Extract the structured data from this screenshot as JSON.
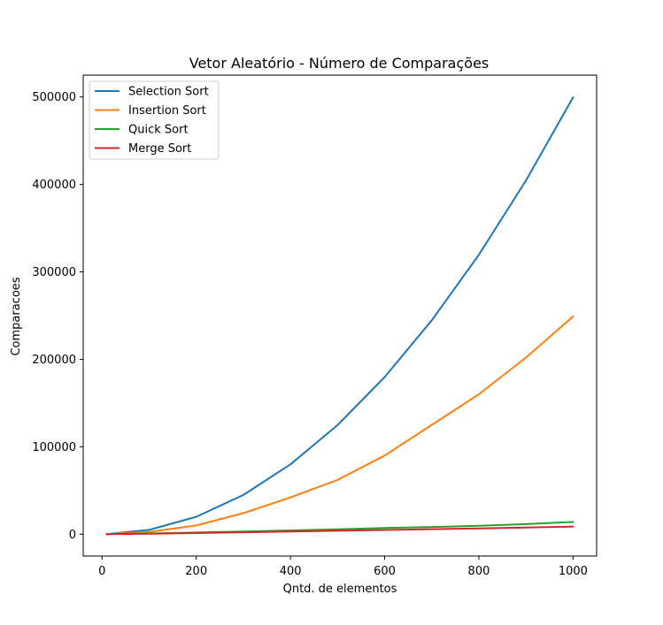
{
  "chart_data": {
    "type": "line",
    "title": "Vetor Aleatório - Número de Comparações",
    "xlabel": "Qntd. de elementos",
    "ylabel": "Comparacoes",
    "xlim": [
      -40,
      1050
    ],
    "ylim": [
      -25000,
      525000
    ],
    "xticks": [
      0,
      200,
      400,
      600,
      800,
      1000
    ],
    "xtick_labels": [
      "0",
      "200",
      "400",
      "600",
      "800",
      "1000"
    ],
    "yticks": [
      0,
      100000,
      200000,
      300000,
      400000,
      500000
    ],
    "ytick_labels": [
      "0",
      "100000",
      "200000",
      "300000",
      "400000",
      "500000"
    ],
    "grid": false,
    "legend_position": "top-left",
    "x": [
      10,
      100,
      200,
      300,
      400,
      500,
      600,
      700,
      800,
      900,
      1000
    ],
    "series": [
      {
        "name": "Selection Sort",
        "color": "#1f77b4",
        "values": [
          45,
          4950,
          19900,
          44850,
          79800,
          124750,
          179700,
          244650,
          319600,
          404550,
          499500
        ]
      },
      {
        "name": "Insertion Sort",
        "color": "#ff7f0e",
        "values": [
          25,
          2500,
          10000,
          24000,
          42000,
          62000,
          90000,
          125000,
          160000,
          202000,
          249000
        ]
      },
      {
        "name": "Quick Sort",
        "color": "#2ca02c",
        "values": [
          30,
          800,
          1900,
          3100,
          4300,
          5600,
          7000,
          8300,
          9600,
          11500,
          14000
        ]
      },
      {
        "name": "Merge Sort",
        "color": "#d62728",
        "values": [
          25,
          550,
          1300,
          2200,
          3000,
          3900,
          4800,
          5700,
          6600,
          7600,
          8700
        ]
      }
    ]
  }
}
